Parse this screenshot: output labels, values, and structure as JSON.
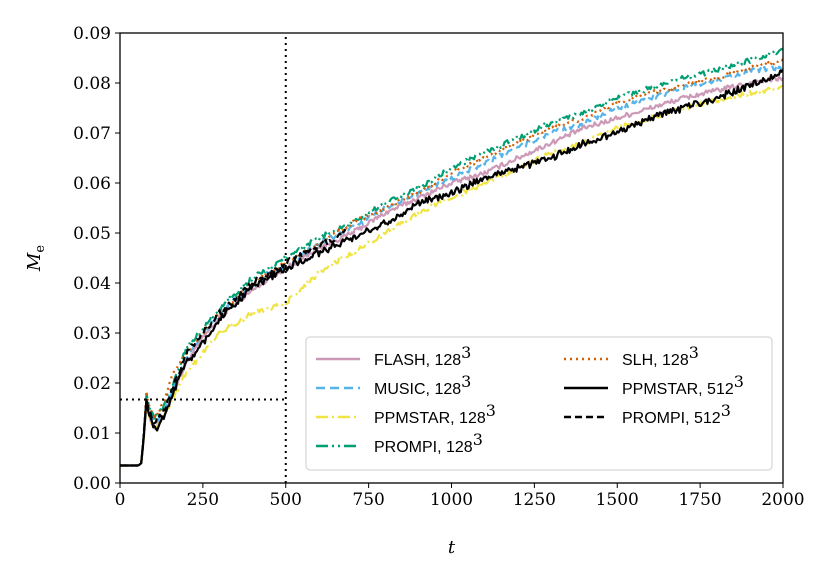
{
  "chart_data": {
    "type": "line",
    "xlabel": "t",
    "ylabel": "M",
    "ylabel_sub": "e",
    "xlim": [
      0,
      2000
    ],
    "ylim": [
      0,
      0.09
    ],
    "xticks": [
      "0",
      "250",
      "500",
      "750",
      "1000",
      "1250",
      "1500",
      "1750",
      "2000"
    ],
    "yticks": [
      "0.00",
      "0.01",
      "0.02",
      "0.03",
      "0.04",
      "0.05",
      "0.06",
      "0.07",
      "0.08",
      "0.09"
    ],
    "grid": false,
    "legend_position": "lower-right",
    "reference_lines": [
      {
        "orientation": "vertical",
        "x": 500,
        "y_from": 0,
        "y_to": 0.09
      },
      {
        "orientation": "horizontal",
        "y": 0.0167,
        "x_from": 0,
        "x_to": 500
      }
    ],
    "series": [
      {
        "name": "FLASH, 128",
        "superscript": "3",
        "color": "#CC99B7",
        "dash": "solid",
        "noise": 0.0005,
        "points": [
          [
            0,
            0.0035
          ],
          [
            55,
            0.0035
          ],
          [
            65,
            0.004
          ],
          [
            80,
            0.016
          ],
          [
            90,
            0.013
          ],
          [
            105,
            0.011
          ],
          [
            130,
            0.013
          ],
          [
            160,
            0.018
          ],
          [
            200,
            0.024
          ],
          [
            250,
            0.029
          ],
          [
            300,
            0.033
          ],
          [
            350,
            0.036
          ],
          [
            400,
            0.0385
          ],
          [
            450,
            0.041
          ],
          [
            500,
            0.043
          ],
          [
            600,
            0.047
          ],
          [
            700,
            0.05
          ],
          [
            800,
            0.054
          ],
          [
            900,
            0.057
          ],
          [
            1000,
            0.06
          ],
          [
            1100,
            0.062
          ],
          [
            1200,
            0.065
          ],
          [
            1300,
            0.068
          ],
          [
            1400,
            0.071
          ],
          [
            1500,
            0.073
          ],
          [
            1600,
            0.075
          ],
          [
            1700,
            0.077
          ],
          [
            1800,
            0.0785
          ],
          [
            1900,
            0.08
          ],
          [
            2000,
            0.081
          ]
        ]
      },
      {
        "name": "MUSIC, 128",
        "superscript": "3",
        "color": "#56B4E9",
        "dash": "9,5",
        "noise": 0.0005,
        "points": [
          [
            0,
            0.0035
          ],
          [
            55,
            0.0035
          ],
          [
            65,
            0.004
          ],
          [
            80,
            0.017
          ],
          [
            90,
            0.014
          ],
          [
            105,
            0.012
          ],
          [
            130,
            0.014
          ],
          [
            160,
            0.019
          ],
          [
            200,
            0.025
          ],
          [
            250,
            0.03
          ],
          [
            300,
            0.034
          ],
          [
            350,
            0.037
          ],
          [
            400,
            0.0395
          ],
          [
            450,
            0.042
          ],
          [
            500,
            0.043
          ],
          [
            600,
            0.048
          ],
          [
            700,
            0.051
          ],
          [
            800,
            0.055
          ],
          [
            900,
            0.058
          ],
          [
            1000,
            0.061
          ],
          [
            1100,
            0.064
          ],
          [
            1200,
            0.067
          ],
          [
            1300,
            0.07
          ],
          [
            1400,
            0.072
          ],
          [
            1500,
            0.075
          ],
          [
            1600,
            0.077
          ],
          [
            1700,
            0.079
          ],
          [
            1800,
            0.0805
          ],
          [
            1900,
            0.0825
          ],
          [
            2000,
            0.083
          ]
        ]
      },
      {
        "name": "PPMSTAR, 128",
        "superscript": "3",
        "color": "#F0E442",
        "dash": "12,4,2,4",
        "noise": 0.0005,
        "points": [
          [
            0,
            0.0035
          ],
          [
            55,
            0.0035
          ],
          [
            65,
            0.004
          ],
          [
            80,
            0.016
          ],
          [
            90,
            0.013
          ],
          [
            105,
            0.011
          ],
          [
            130,
            0.013
          ],
          [
            160,
            0.017
          ],
          [
            200,
            0.022
          ],
          [
            250,
            0.026
          ],
          [
            300,
            0.03
          ],
          [
            350,
            0.032
          ],
          [
            400,
            0.034
          ],
          [
            450,
            0.035
          ],
          [
            500,
            0.036
          ],
          [
            600,
            0.042
          ],
          [
            700,
            0.046
          ],
          [
            800,
            0.05
          ],
          [
            900,
            0.054
          ],
          [
            1000,
            0.057
          ],
          [
            1100,
            0.06
          ],
          [
            1200,
            0.063
          ],
          [
            1300,
            0.066
          ],
          [
            1400,
            0.068
          ],
          [
            1500,
            0.071
          ],
          [
            1600,
            0.073
          ],
          [
            1700,
            0.075
          ],
          [
            1800,
            0.0765
          ],
          [
            1900,
            0.078
          ],
          [
            2000,
            0.079
          ]
        ]
      },
      {
        "name": "PROMPI, 128",
        "superscript": "3",
        "color": "#009E73",
        "dash": "12,4,2,4,2,4",
        "noise": 0.0005,
        "points": [
          [
            0,
            0.0035
          ],
          [
            55,
            0.0035
          ],
          [
            65,
            0.004
          ],
          [
            80,
            0.018
          ],
          [
            90,
            0.015
          ],
          [
            105,
            0.013
          ],
          [
            130,
            0.015
          ],
          [
            160,
            0.02
          ],
          [
            200,
            0.027
          ],
          [
            250,
            0.031
          ],
          [
            300,
            0.035
          ],
          [
            350,
            0.038
          ],
          [
            400,
            0.041
          ],
          [
            450,
            0.043
          ],
          [
            500,
            0.045
          ],
          [
            600,
            0.049
          ],
          [
            700,
            0.052
          ],
          [
            800,
            0.056
          ],
          [
            900,
            0.059
          ],
          [
            1000,
            0.063
          ],
          [
            1100,
            0.066
          ],
          [
            1200,
            0.069
          ],
          [
            1300,
            0.072
          ],
          [
            1400,
            0.074
          ],
          [
            1500,
            0.077
          ],
          [
            1600,
            0.079
          ],
          [
            1700,
            0.081
          ],
          [
            1800,
            0.0825
          ],
          [
            1900,
            0.0845
          ],
          [
            2000,
            0.0865
          ]
        ]
      },
      {
        "name": "SLH, 128",
        "superscript": "3",
        "color": "#D55E00",
        "dash": "2,4",
        "noise": 0.0004,
        "points": [
          [
            0,
            0.0035
          ],
          [
            55,
            0.0035
          ],
          [
            65,
            0.004
          ],
          [
            80,
            0.018
          ],
          [
            90,
            0.015
          ],
          [
            105,
            0.013
          ],
          [
            130,
            0.016
          ],
          [
            160,
            0.022
          ],
          [
            200,
            0.026
          ],
          [
            250,
            0.03
          ],
          [
            300,
            0.034
          ],
          [
            350,
            0.037
          ],
          [
            400,
            0.04
          ],
          [
            450,
            0.042
          ],
          [
            500,
            0.044
          ],
          [
            600,
            0.048
          ],
          [
            700,
            0.052
          ],
          [
            800,
            0.055
          ],
          [
            900,
            0.058
          ],
          [
            1000,
            0.062
          ],
          [
            1100,
            0.065
          ],
          [
            1200,
            0.068
          ],
          [
            1300,
            0.071
          ],
          [
            1400,
            0.073
          ],
          [
            1500,
            0.076
          ],
          [
            1600,
            0.078
          ],
          [
            1700,
            0.0795
          ],
          [
            1800,
            0.081
          ],
          [
            1900,
            0.083
          ],
          [
            2000,
            0.0845
          ]
        ]
      },
      {
        "name": "PPMSTAR, 512",
        "superscript": "3",
        "color": "#000000",
        "dash": "solid",
        "noise": 0.0007,
        "points": [
          [
            0,
            0.0035
          ],
          [
            55,
            0.0035
          ],
          [
            65,
            0.004
          ],
          [
            80,
            0.0165
          ],
          [
            90,
            0.013
          ],
          [
            105,
            0.0105
          ],
          [
            130,
            0.013
          ],
          [
            160,
            0.018
          ],
          [
            200,
            0.024
          ],
          [
            250,
            0.028
          ],
          [
            300,
            0.033
          ],
          [
            350,
            0.036
          ],
          [
            400,
            0.039
          ],
          [
            450,
            0.041
          ],
          [
            500,
            0.043
          ],
          [
            600,
            0.046
          ],
          [
            700,
            0.049
          ],
          [
            800,
            0.052
          ],
          [
            900,
            0.056
          ],
          [
            1000,
            0.058
          ],
          [
            1100,
            0.061
          ],
          [
            1200,
            0.063
          ],
          [
            1300,
            0.065
          ],
          [
            1400,
            0.068
          ],
          [
            1500,
            0.07
          ],
          [
            1600,
            0.073
          ],
          [
            1700,
            0.075
          ],
          [
            1800,
            0.077
          ],
          [
            1900,
            0.0795
          ],
          [
            2000,
            0.082
          ]
        ]
      },
      {
        "name": "PROMPI, 512",
        "superscript": "3",
        "color": "#000000",
        "dash": "7,4",
        "noise": 0.0006,
        "points": [
          [
            0,
            0.0035
          ],
          [
            55,
            0.0035
          ],
          [
            65,
            0.004
          ],
          [
            80,
            0.017
          ],
          [
            90,
            0.014
          ],
          [
            105,
            0.012
          ],
          [
            130,
            0.014
          ],
          [
            160,
            0.019
          ],
          [
            200,
            0.026
          ],
          [
            250,
            0.03
          ],
          [
            300,
            0.034
          ],
          [
            350,
            0.037
          ],
          [
            400,
            0.04
          ],
          [
            450,
            0.042
          ],
          [
            500,
            0.044
          ],
          [
            550,
            0.046
          ],
          [
            600,
            0.0475
          ],
          [
            650,
            0.049
          ],
          [
            680,
            0.0505
          ]
        ]
      }
    ]
  }
}
